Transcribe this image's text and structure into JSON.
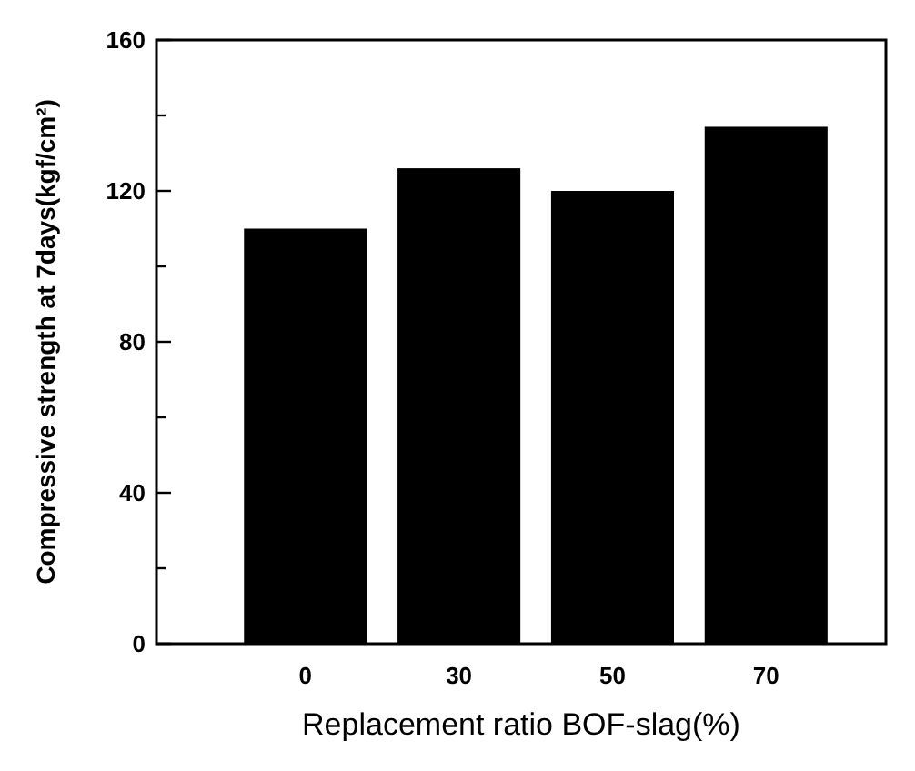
{
  "chart_data": {
    "type": "bar",
    "xlabel": "Replacement ratio BOF-slag(%)",
    "ylabel": "Compressive strength at 7days(kgf/cm²)",
    "categories": [
      "0",
      "30",
      "50",
      "70"
    ],
    "values": [
      110,
      126,
      120,
      137
    ],
    "color": "#000000",
    "ylim": [
      0,
      160
    ],
    "yticks": [
      0,
      {
        "value": 20,
        "label": null
      },
      40,
      {
        "value": 60,
        "label": null
      },
      80,
      {
        "value": 100,
        "label": null
      },
      120,
      {
        "value": 140,
        "label": null
      },
      160
    ],
    "grid": false
  }
}
